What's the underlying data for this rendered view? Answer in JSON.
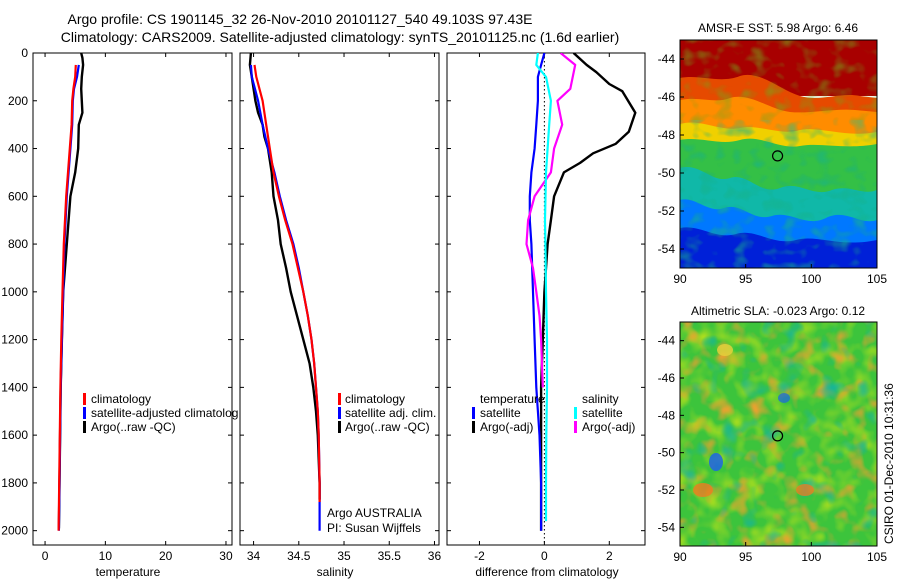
{
  "title": {
    "line1": "Argo profile: CS 1901145_32 26-Nov-2010 20101127_540 49.103S 97.43E",
    "line2": "Climatology: CARS2009. Satellite-adjusted climatology: synTS_20101125.nc (1.6d earlier)"
  },
  "watermark": "CSIRO 01-Dec-2010 10:31:36",
  "colors": {
    "red": "#ff0000",
    "blue": "#0000ff",
    "black": "#000000",
    "cyan": "#00ffff",
    "magenta": "#ff00ff"
  },
  "chart_data": [
    {
      "type": "line",
      "title": "",
      "xlabel": "temperature",
      "ylabel": "",
      "xlim": [
        -2,
        31
      ],
      "ylim": [
        2060,
        0
      ],
      "xticks": [
        "0",
        "10",
        "20",
        "30"
      ],
      "yticks": [
        "0",
        "200",
        "400",
        "600",
        "800",
        "1000",
        "1200",
        "1400",
        "1600",
        "1800",
        "2000"
      ],
      "series": [
        {
          "name": "Argo(..raw -QC)",
          "color": "#000000",
          "width": 2.4,
          "points": [
            [
              6.0,
              0
            ],
            [
              6.2,
              20
            ],
            [
              6.3,
              50
            ],
            [
              6.1,
              100
            ],
            [
              6.0,
              150
            ],
            [
              6.1,
              200
            ],
            [
              6.2,
              250
            ],
            [
              5.6,
              300
            ],
            [
              5.5,
              400
            ],
            [
              5.0,
              500
            ],
            [
              4.2,
              600
            ],
            [
              3.9,
              700
            ],
            [
              3.6,
              800
            ],
            [
              3.3,
              900
            ],
            [
              3.0,
              1000
            ],
            [
              2.8,
              1200
            ],
            [
              2.6,
              1400
            ],
            [
              2.5,
              1600
            ],
            [
              2.4,
              1800
            ],
            [
              2.3,
              1990
            ]
          ]
        },
        {
          "name": "satellite-adjusted climatology",
          "color": "#0000ff",
          "width": 2.2,
          "points": [
            [
              5.6,
              50
            ],
            [
              5.3,
              100
            ],
            [
              4.8,
              150
            ],
            [
              4.6,
              200
            ],
            [
              4.5,
              300
            ],
            [
              4.2,
              400
            ],
            [
              3.9,
              500
            ],
            [
              3.6,
              600
            ],
            [
              3.4,
              700
            ],
            [
              3.2,
              800
            ],
            [
              3.0,
              1000
            ],
            [
              2.8,
              1200
            ],
            [
              2.6,
              1400
            ],
            [
              2.5,
              1600
            ],
            [
              2.4,
              1800
            ],
            [
              2.3,
              2000
            ]
          ]
        },
        {
          "name": "climatology",
          "color": "#ff0000",
          "width": 2.2,
          "points": [
            [
              5.1,
              50
            ],
            [
              5.0,
              100
            ],
            [
              4.7,
              150
            ],
            [
              4.5,
              200
            ],
            [
              4.4,
              300
            ],
            [
              4.1,
              400
            ],
            [
              3.8,
              500
            ],
            [
              3.5,
              600
            ],
            [
              3.3,
              700
            ],
            [
              3.1,
              800
            ],
            [
              2.9,
              1000
            ],
            [
              2.7,
              1200
            ],
            [
              2.55,
              1400
            ],
            [
              2.45,
              1600
            ],
            [
              2.35,
              1800
            ],
            [
              2.25,
              2000
            ]
          ]
        }
      ],
      "legend": {
        "position": "center-right",
        "entries": [
          {
            "label": "climatology",
            "color": "#ff0000"
          },
          {
            "label": "satellite-adjusted climatolog",
            "color": "#0000ff"
          },
          {
            "label": "Argo(..raw -QC)",
            "color": "#000000"
          }
        ]
      }
    },
    {
      "type": "line",
      "title": "",
      "xlabel": "salinity",
      "ylabel": "",
      "xlim": [
        33.85,
        36.05
      ],
      "ylim": [
        2060,
        0
      ],
      "xticks": [
        "34",
        "34.5",
        "35",
        "35.5",
        "36"
      ],
      "yticks": [],
      "series": [
        {
          "name": "Argo(..raw -QC)",
          "color": "#000000",
          "width": 2.4,
          "points": [
            [
              33.97,
              0
            ],
            [
              33.96,
              50
            ],
            [
              33.98,
              100
            ],
            [
              34.02,
              200
            ],
            [
              34.05,
              250
            ],
            [
              34.1,
              300
            ],
            [
              34.12,
              350
            ],
            [
              34.16,
              400
            ],
            [
              34.2,
              500
            ],
            [
              34.22,
              600
            ],
            [
              34.27,
              700
            ],
            [
              34.3,
              800
            ],
            [
              34.36,
              900
            ],
            [
              34.41,
              1000
            ],
            [
              34.48,
              1100
            ],
            [
              34.55,
              1200
            ],
            [
              34.62,
              1300
            ],
            [
              34.66,
              1400
            ],
            [
              34.69,
              1500
            ],
            [
              34.71,
              1600
            ],
            [
              34.72,
              1700
            ],
            [
              34.73,
              1800
            ],
            [
              34.73,
              1870
            ]
          ]
        },
        {
          "name": "satellite adj. clim.",
          "color": "#0000ff",
          "width": 2.2,
          "points": [
            [
              33.97,
              50
            ],
            [
              33.98,
              100
            ],
            [
              34.05,
              200
            ],
            [
              34.1,
              300
            ],
            [
              34.16,
              400
            ],
            [
              34.23,
              500
            ],
            [
              34.29,
              600
            ],
            [
              34.36,
              700
            ],
            [
              34.44,
              800
            ],
            [
              34.5,
              900
            ],
            [
              34.55,
              1000
            ],
            [
              34.6,
              1100
            ],
            [
              34.64,
              1200
            ],
            [
              34.67,
              1300
            ],
            [
              34.69,
              1400
            ],
            [
              34.71,
              1500
            ],
            [
              34.72,
              1600
            ],
            [
              34.73,
              1800
            ],
            [
              34.73,
              2000
            ]
          ]
        },
        {
          "name": "climatology",
          "color": "#ff0000",
          "width": 2.2,
          "points": [
            [
              34.01,
              50
            ],
            [
              34.03,
              100
            ],
            [
              34.1,
              200
            ],
            [
              34.14,
              300
            ],
            [
              34.18,
              400
            ],
            [
              34.22,
              500
            ],
            [
              34.28,
              600
            ],
            [
              34.35,
              700
            ],
            [
              34.43,
              800
            ],
            [
              34.49,
              900
            ],
            [
              34.55,
              1000
            ],
            [
              34.6,
              1100
            ],
            [
              34.64,
              1200
            ],
            [
              34.67,
              1300
            ],
            [
              34.69,
              1400
            ],
            [
              34.71,
              1500
            ],
            [
              34.72,
              1600
            ],
            [
              34.73,
              1800
            ],
            [
              34.73,
              1880
            ]
          ]
        }
      ],
      "legend": {
        "position": "center-right",
        "entries": [
          {
            "label": "climatology",
            "color": "#ff0000"
          },
          {
            "label": "satellite adj. clim.",
            "color": "#0000ff"
          },
          {
            "label": "Argo(..raw -QC)",
            "color": "#000000"
          }
        ]
      },
      "annotations": [
        "Argo AUSTRALIA",
        "PI: Susan Wijffels"
      ]
    },
    {
      "type": "line",
      "title": "",
      "xlabel": "difference from climatology",
      "ylabel": "",
      "xlim": [
        -3,
        3.1
      ],
      "ylim": [
        2060,
        0
      ],
      "xticks": [
        "-2",
        "0",
        "2"
      ],
      "yticks": [],
      "zero_line": "dotted",
      "series": [
        {
          "name": "temperature Argo(-adj)",
          "color": "#000000",
          "width": 2.4,
          "points": [
            [
              0.9,
              0
            ],
            [
              1.3,
              50
            ],
            [
              1.6,
              80
            ],
            [
              2.0,
              130
            ],
            [
              2.4,
              160
            ],
            [
              2.8,
              250
            ],
            [
              2.6,
              330
            ],
            [
              2.2,
              380
            ],
            [
              1.5,
              420
            ],
            [
              1.1,
              460
            ],
            [
              0.6,
              500
            ],
            [
              0.3,
              600
            ],
            [
              0.2,
              700
            ],
            [
              0.1,
              800
            ],
            [
              0.0,
              1000
            ],
            [
              -0.05,
              1200
            ],
            [
              -0.1,
              1400
            ],
            [
              -0.1,
              1600
            ],
            [
              -0.1,
              1800
            ],
            [
              -0.1,
              2000
            ]
          ]
        },
        {
          "name": "temperature satellite",
          "color": "#0000ff",
          "width": 2.2,
          "points": [
            [
              0.0,
              0
            ],
            [
              -0.1,
              50
            ],
            [
              -0.2,
              100
            ],
            [
              -0.2,
              200
            ],
            [
              -0.25,
              300
            ],
            [
              -0.3,
              400
            ],
            [
              -0.4,
              500
            ],
            [
              -0.45,
              600
            ],
            [
              -0.45,
              700
            ],
            [
              -0.4,
              800
            ],
            [
              -0.35,
              1000
            ],
            [
              -0.3,
              1200
            ],
            [
              -0.25,
              1400
            ],
            [
              -0.15,
              1600
            ],
            [
              -0.1,
              1800
            ],
            [
              -0.1,
              2000
            ]
          ]
        },
        {
          "name": "salinity Argo(-adj)",
          "color": "#ff00ff",
          "width": 2.2,
          "points": [
            [
              0.5,
              0
            ],
            [
              0.95,
              50
            ],
            [
              0.8,
              150
            ],
            [
              0.4,
              200
            ],
            [
              0.55,
              300
            ],
            [
              0.3,
              400
            ],
            [
              0.2,
              500
            ],
            [
              -0.3,
              600
            ],
            [
              -0.5,
              700
            ],
            [
              -0.55,
              800
            ],
            [
              -0.35,
              900
            ],
            [
              -0.25,
              1000
            ],
            [
              -0.15,
              1100
            ],
            [
              -0.1,
              1200
            ],
            [
              -0.05,
              1400
            ]
          ]
        },
        {
          "name": "salinity satellite",
          "color": "#00ffff",
          "width": 2.2,
          "points": [
            [
              -0.2,
              0
            ],
            [
              -0.25,
              50
            ],
            [
              0.05,
              100
            ],
            [
              0.2,
              200
            ],
            [
              0.15,
              300
            ],
            [
              0.1,
              400
            ],
            [
              0.05,
              500
            ],
            [
              0.02,
              700
            ],
            [
              0.03,
              800
            ],
            [
              0.05,
              1000
            ],
            [
              0.08,
              1200
            ],
            [
              0.08,
              1400
            ],
            [
              0.06,
              1600
            ],
            [
              0.05,
              1800
            ],
            [
              0.05,
              1960
            ]
          ]
        }
      ],
      "legend": {
        "position": "center",
        "temperature": {
          "heading": "temperature",
          "entries": [
            {
              "label": "satellite",
              "color": "#0000ff"
            },
            {
              "label": "Argo(-adj)",
              "color": "#000000"
            }
          ]
        },
        "salinity": {
          "heading": "salinity",
          "entries": [
            {
              "label": "satellite",
              "color": "#00ffff"
            },
            {
              "label": "Argo(-adj)",
              "color": "#ff00ff"
            }
          ]
        }
      }
    },
    {
      "type": "heatmap",
      "title": "AMSR-E SST: 5.98 Argo: 6.46",
      "xlim": [
        90,
        105
      ],
      "ylim": [
        -55,
        -43
      ],
      "xticks": [
        "90",
        "95",
        "100",
        "105"
      ],
      "yticks": [
        "-44",
        "-46",
        "-48",
        "-50",
        "-52",
        "-54"
      ],
      "marker": {
        "lon": 97.43,
        "lat": -49.1
      },
      "field": "sst"
    },
    {
      "type": "heatmap",
      "title": "Altimetric SLA: -0.023 Argo: 0.12",
      "xlim": [
        90,
        105
      ],
      "ylim": [
        -55,
        -43
      ],
      "xticks": [
        "90",
        "95",
        "100",
        "105"
      ],
      "yticks": [
        "-44",
        "-46",
        "-48",
        "-50",
        "-52",
        "-54"
      ],
      "marker": {
        "lon": 97.43,
        "lat": -49.1
      },
      "field": "sla"
    }
  ]
}
